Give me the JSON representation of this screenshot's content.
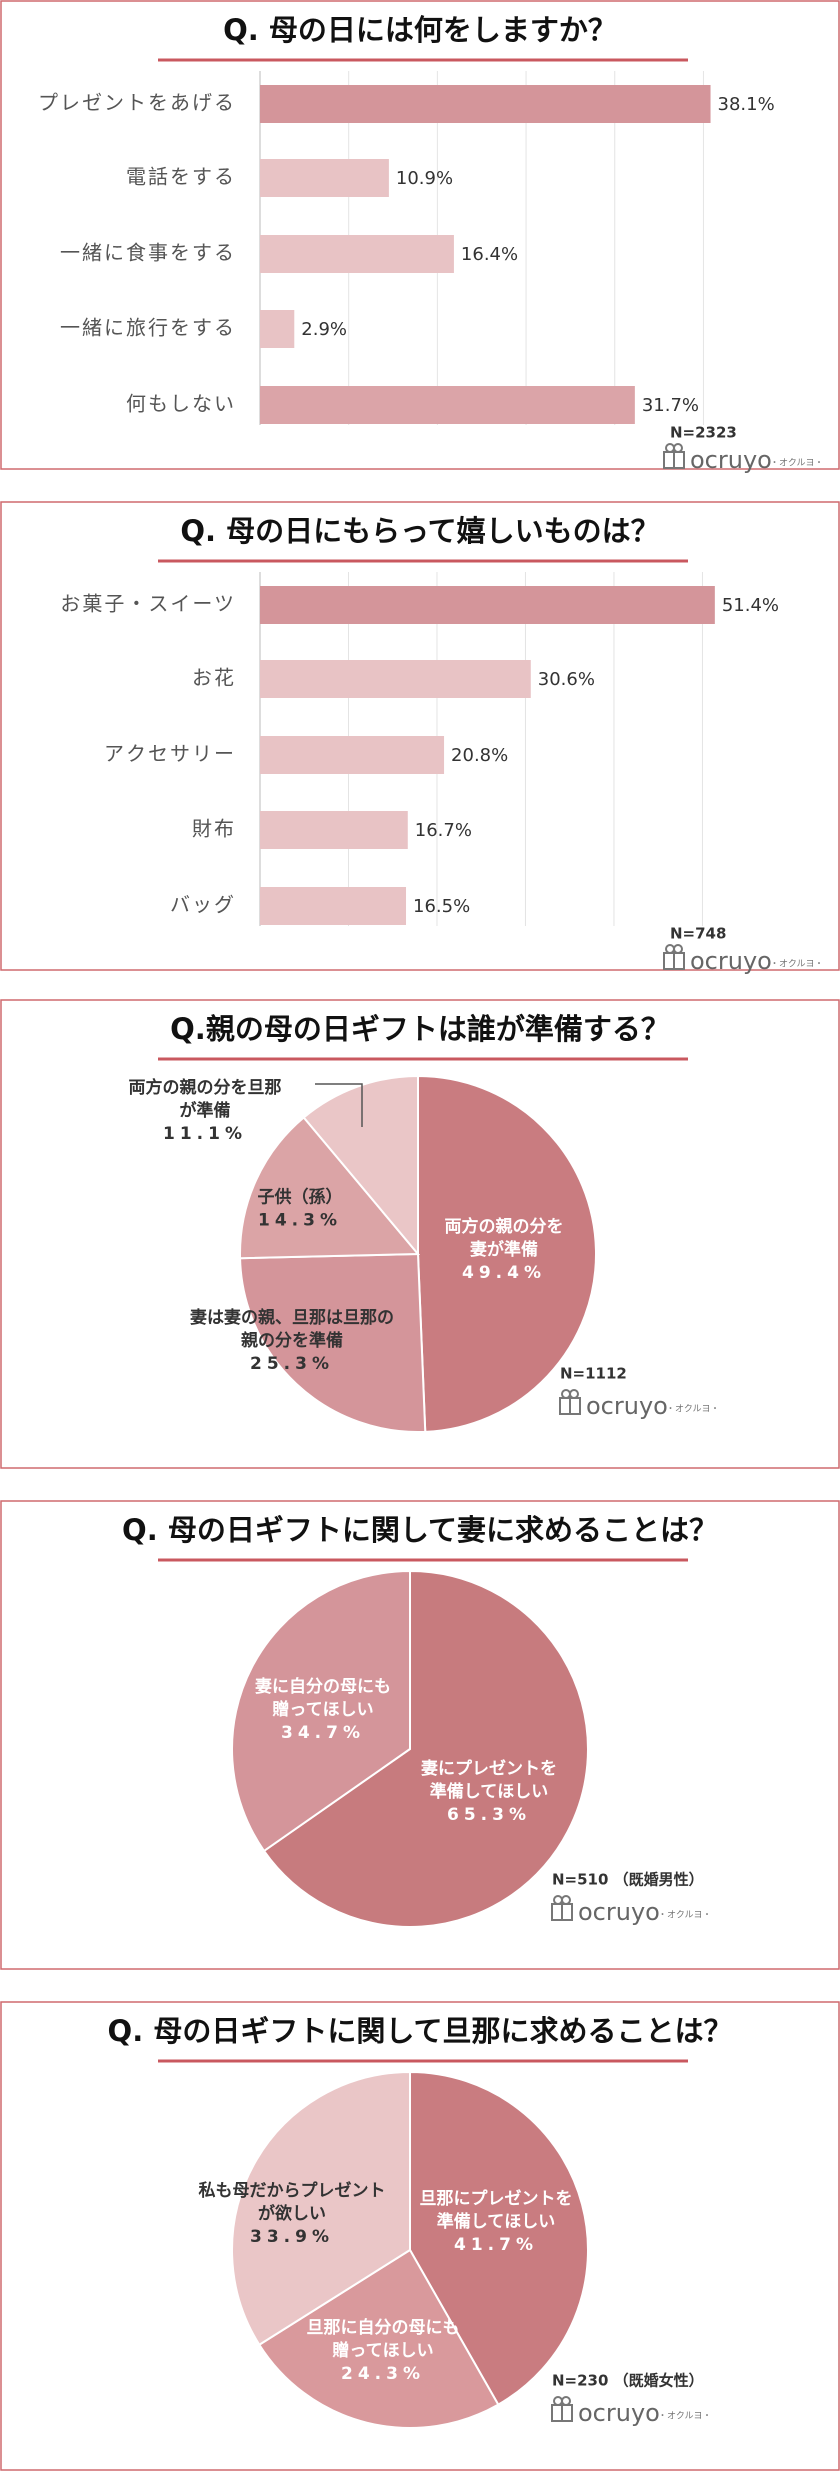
{
  "chart_data": [
    {
      "type": "bar",
      "title": "Q. 母の日には何をしますか？",
      "categories": [
        "プレゼントをあげる",
        "電話をする",
        "一緒に食事をする",
        "一緒に旅行をする",
        "何もしない"
      ],
      "values": [
        38.1,
        10.9,
        16.4,
        2.9,
        31.7
      ],
      "value_labels": [
        "38.1%",
        "10.9%",
        "16.4%",
        "2.9%",
        "31.7%"
      ],
      "colors": [
        "#d4959a",
        "#e8c3c5",
        "#e8c3c5",
        "#e8c3c5",
        "#dba4a8"
      ],
      "xlim": [
        0,
        40
      ],
      "xticks": [
        0,
        7.5,
        15,
        22.5,
        30,
        37.5
      ],
      "grid": true,
      "note": "N=2323",
      "logo": "ocruyo",
      "logo_sub": "・オクルヨ・"
    },
    {
      "type": "bar",
      "title": "Q. 母の日にもらって嬉しいものは？",
      "categories": [
        "お菓子・スイーツ",
        "お花",
        "アクセサリー",
        "財布",
        "バッグ"
      ],
      "values": [
        51.4,
        30.6,
        20.8,
        16.7,
        16.5
      ],
      "value_labels": [
        "51.4%",
        "30.6%",
        "20.8%",
        "16.7%",
        "16.5%"
      ],
      "colors": [
        "#d4959a",
        "#e8c3c5",
        "#e8c3c5",
        "#e8c3c5",
        "#e8c3c5"
      ],
      "xlim": [
        0,
        53
      ],
      "xticks": [
        0,
        10,
        20,
        30,
        40,
        50
      ],
      "grid": true,
      "note": "N=748",
      "logo": "ocruyo",
      "logo_sub": "・オクルヨ・"
    },
    {
      "type": "pie",
      "title": "Q.親の母の日ギフトは誰が準備する？",
      "labels": [
        [
          "両方の親の分を",
          "妻が準備"
        ],
        [
          "妻は妻の親、旦那は旦那の",
          "親の分を準備"
        ],
        [
          "子供（孫）"
        ],
        [
          "両方の親の分を旦那",
          "が準備"
        ]
      ],
      "values": [
        49.4,
        25.3,
        14.3,
        11.1
      ],
      "value_labels": [
        "49.4%",
        "25.3%",
        "14.3%",
        "11.1%"
      ],
      "colors": [
        "#c97c80",
        "#d4959a",
        "#dba4a6",
        "#eac6c7"
      ],
      "note": "N=1112",
      "logo": "ocruyo",
      "logo_sub": "・オクルヨ・"
    },
    {
      "type": "pie",
      "title": "Q. 母の日ギフトに関して妻に求めることは？",
      "labels": [
        [
          "妻にプレゼントを",
          "準備してほしい"
        ],
        [
          "妻に自分の母にも",
          "贈ってほしい"
        ]
      ],
      "values": [
        65.3,
        34.7
      ],
      "value_labels": [
        "65.3%",
        "34.7%"
      ],
      "colors": [
        "#c77b7e",
        "#d4959a"
      ],
      "note": "N=510 （既婚男性）",
      "logo": "ocruyo",
      "logo_sub": "・オクルヨ・"
    },
    {
      "type": "pie",
      "title": "Q. 母の日ギフトに関して旦那に求めることは？",
      "labels": [
        [
          "旦那にプレゼントを",
          "準備してほしい"
        ],
        [
          "旦那に自分の母にも",
          "贈ってほしい"
        ],
        [
          "私も母だからプレゼント",
          "が欲しい"
        ]
      ],
      "values": [
        41.7,
        24.3,
        33.9
      ],
      "value_labels": [
        "41.7%",
        "24.3%",
        "33.9%"
      ],
      "colors": [
        "#c97c80",
        "#d9999c",
        "#eac6c7"
      ],
      "note": "N=230 （既婚女性）",
      "logo": "ocruyo",
      "logo_sub": "・オクルヨ・"
    }
  ]
}
